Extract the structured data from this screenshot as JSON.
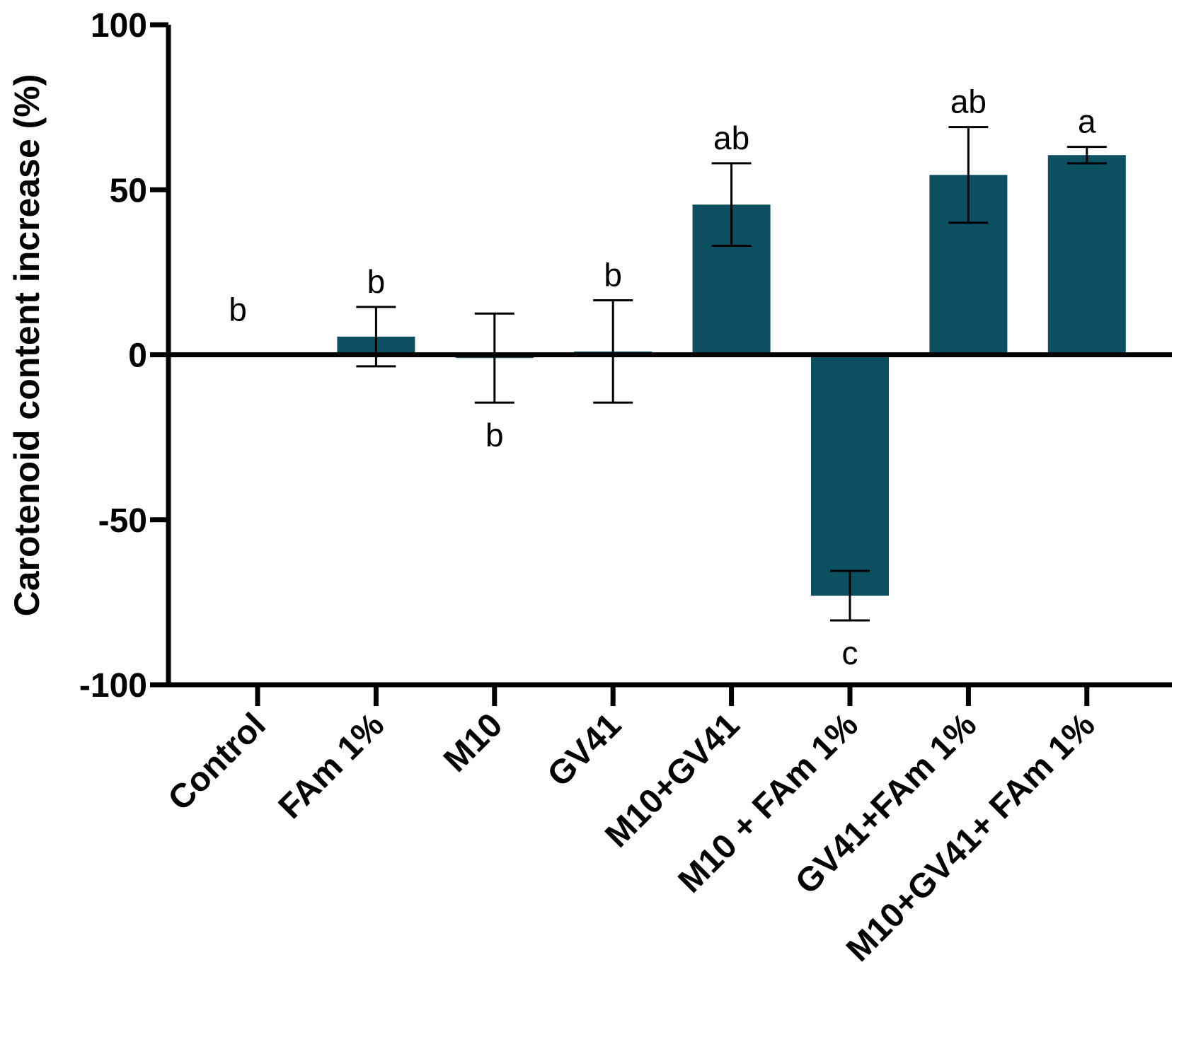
{
  "chart_data": {
    "type": "bar",
    "title": "",
    "xlabel": "",
    "ylabel": "Carotenoid content increase (%)",
    "ylim": [
      -100,
      100
    ],
    "yticks": [
      "100",
      "50",
      "0",
      "-50",
      "-100"
    ],
    "ytick_values": [
      100,
      50,
      0,
      -50,
      -100
    ],
    "categories": [
      "Control",
      "FAm 1%",
      "M10",
      "GV41",
      "M10+GV41",
      "M10 + FAm 1%",
      "GV41+FAm 1%",
      "M10+GV41+ FAm 1%"
    ],
    "values": [
      0,
      5.5,
      -1,
      1,
      45.5,
      -73,
      54.5,
      60.5
    ],
    "errors": [
      0,
      9,
      13.5,
      15.5,
      12.5,
      7.5,
      14.5,
      2.5
    ],
    "significance": [
      "b",
      "b",
      "b",
      "b",
      "ab",
      "c",
      "ab",
      "a"
    ],
    "bar_color": "#0b4f60",
    "grid": false
  }
}
